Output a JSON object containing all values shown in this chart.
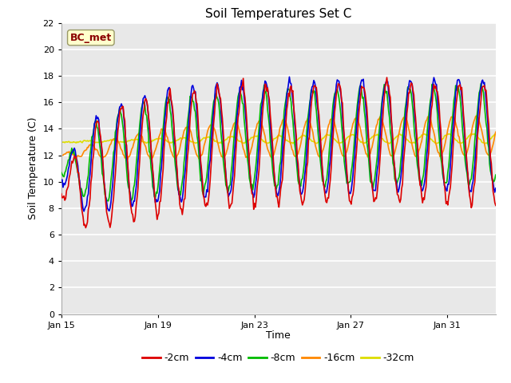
{
  "title": "Soil Temperatures Set C",
  "xlabel": "Time",
  "ylabel": "Soil Temperature (C)",
  "ylim": [
    0,
    22
  ],
  "yticks": [
    0,
    2,
    4,
    6,
    8,
    10,
    12,
    14,
    16,
    18,
    20,
    22
  ],
  "xtick_labels": [
    "Jan 15",
    "Jan 19",
    "Jan 23",
    "Jan 27",
    "Jan 31"
  ],
  "xtick_positions": [
    0,
    4,
    8,
    12,
    16
  ],
  "xlim": [
    0,
    18
  ],
  "legend_label": "BC_met",
  "series_labels": [
    "-2cm",
    "-4cm",
    "-8cm",
    "-16cm",
    "-32cm"
  ],
  "series_colors": [
    "#dd0000",
    "#0000dd",
    "#00bb00",
    "#ff8800",
    "#dddd00"
  ],
  "line_width": 1.2,
  "fig_bg_color": "#ffffff",
  "plot_bg_color": "#e8e8e8",
  "grid_color": "#ffffff",
  "n_points": 500
}
